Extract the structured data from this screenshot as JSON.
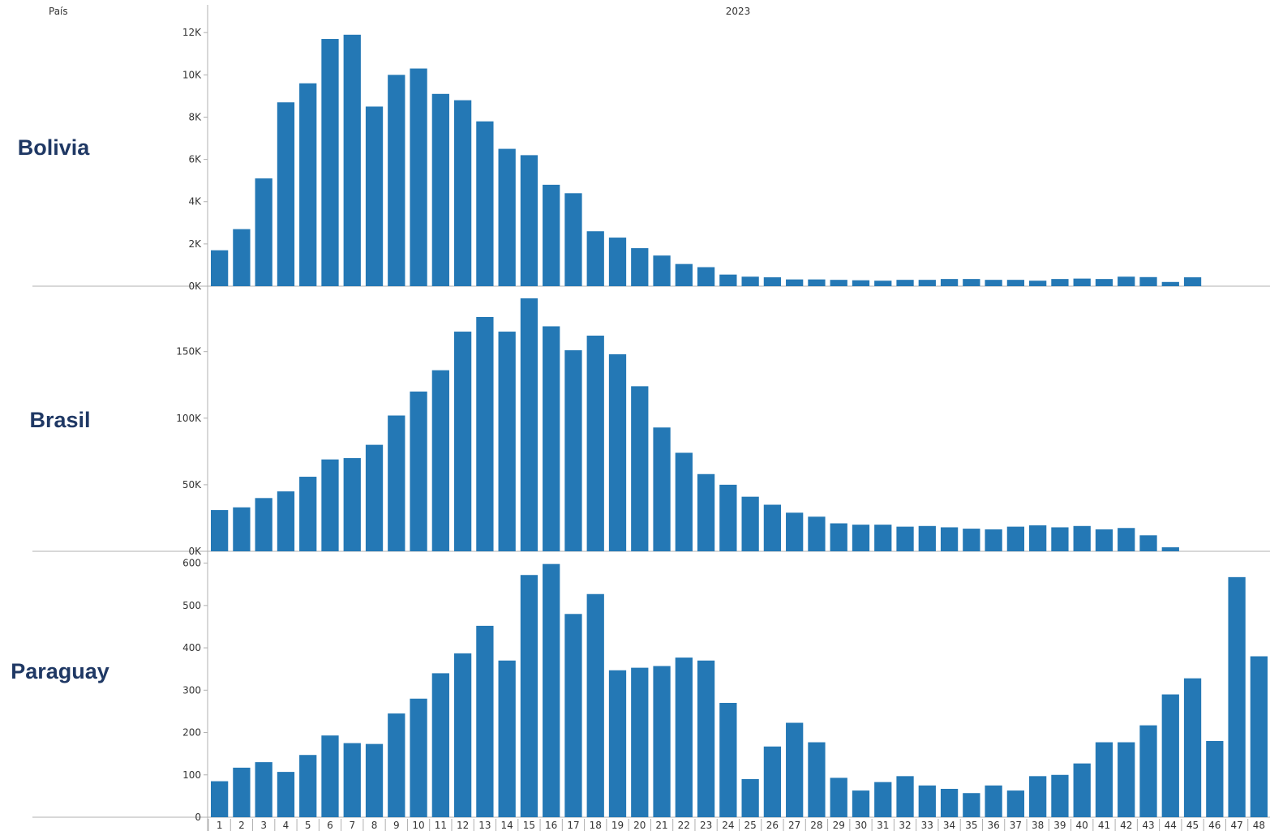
{
  "header": {
    "row_field_label": "País",
    "column_year_label": "2023"
  },
  "colors": {
    "bar": "#2478b5",
    "row_label": "#1f3864",
    "axis": "#b0b0b0",
    "text": "#333333"
  },
  "chart_data": {
    "type": "bar",
    "categories": [
      "1",
      "2",
      "3",
      "4",
      "5",
      "6",
      "7",
      "8",
      "9",
      "10",
      "11",
      "12",
      "13",
      "14",
      "15",
      "16",
      "17",
      "18",
      "19",
      "20",
      "21",
      "22",
      "23",
      "24",
      "25",
      "26",
      "27",
      "28",
      "29",
      "30",
      "31",
      "32",
      "33",
      "34",
      "35",
      "36",
      "37",
      "38",
      "39",
      "40",
      "41",
      "42",
      "43",
      "44",
      "45",
      "46",
      "47",
      "48"
    ],
    "panels": [
      {
        "name": "Bolivia",
        "ylim": [
          0,
          12200
        ],
        "yticks": [
          0,
          2000,
          4000,
          6000,
          8000,
          10000,
          12000
        ],
        "ytick_labels": [
          "0K",
          "2K",
          "4K",
          "6K",
          "8K",
          "10K",
          "12K"
        ],
        "values": [
          1700,
          2700,
          5100,
          8700,
          9600,
          11700,
          11900,
          8500,
          10000,
          10300,
          9100,
          8800,
          7800,
          6500,
          6200,
          4800,
          4400,
          2600,
          2300,
          1800,
          1450,
          1050,
          900,
          550,
          450,
          420,
          320,
          320,
          300,
          280,
          260,
          300,
          300,
          340,
          340,
          300,
          300,
          260,
          340,
          360,
          340,
          450,
          430,
          200,
          420,
          null,
          null,
          null
        ]
      },
      {
        "name": "Brasil",
        "ylim": [
          0,
          190000
        ],
        "yticks": [
          0,
          50000,
          100000,
          150000
        ],
        "ytick_labels": [
          "0K",
          "50K",
          "100K",
          "150K"
        ],
        "values": [
          31000,
          33000,
          40000,
          45000,
          56000,
          69000,
          70000,
          80000,
          102000,
          120000,
          136000,
          165000,
          176000,
          165000,
          190000,
          169000,
          151000,
          162000,
          148000,
          124000,
          93000,
          74000,
          58000,
          50000,
          41000,
          35000,
          29000,
          26000,
          21000,
          20000,
          20000,
          18500,
          19000,
          18000,
          17000,
          16500,
          18500,
          19500,
          18000,
          19000,
          16500,
          17500,
          12000,
          3000,
          null,
          null,
          null,
          null
        ]
      },
      {
        "name": "Paraguay",
        "ylim": [
          0,
          605
        ],
        "yticks": [
          0,
          100,
          200,
          300,
          400,
          500,
          600
        ],
        "ytick_labels": [
          "0",
          "100",
          "200",
          "300",
          "400",
          "500",
          "600"
        ],
        "values": [
          85,
          117,
          130,
          107,
          147,
          193,
          175,
          173,
          245,
          280,
          340,
          387,
          452,
          370,
          572,
          598,
          480,
          527,
          347,
          353,
          357,
          377,
          370,
          270,
          90,
          167,
          223,
          177,
          93,
          63,
          83,
          97,
          75,
          67,
          57,
          75,
          63,
          97,
          100,
          127,
          177,
          177,
          217,
          290,
          328,
          180,
          567,
          380
        ]
      }
    ]
  }
}
